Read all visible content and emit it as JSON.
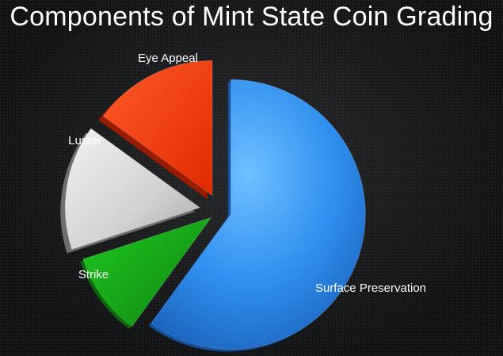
{
  "colors": {
    "background": "#1b1c1e",
    "title_text": "#ffffff",
    "label_text": "#ffffff"
  },
  "chart_data": {
    "type": "pie",
    "title": "Components of Mint State Coin Grading",
    "exploded": true,
    "style": "3d",
    "slices": [
      {
        "label": "Surface Preservation",
        "value": 60,
        "color": "#2f8ff0"
      },
      {
        "label": "Strike",
        "value": 10,
        "color": "#17a31a"
      },
      {
        "label": "Luster",
        "value": 15,
        "color": "#d7d7d7"
      },
      {
        "label": "Eye Appeal",
        "value": 15,
        "color": "#ff3b0f"
      }
    ]
  }
}
